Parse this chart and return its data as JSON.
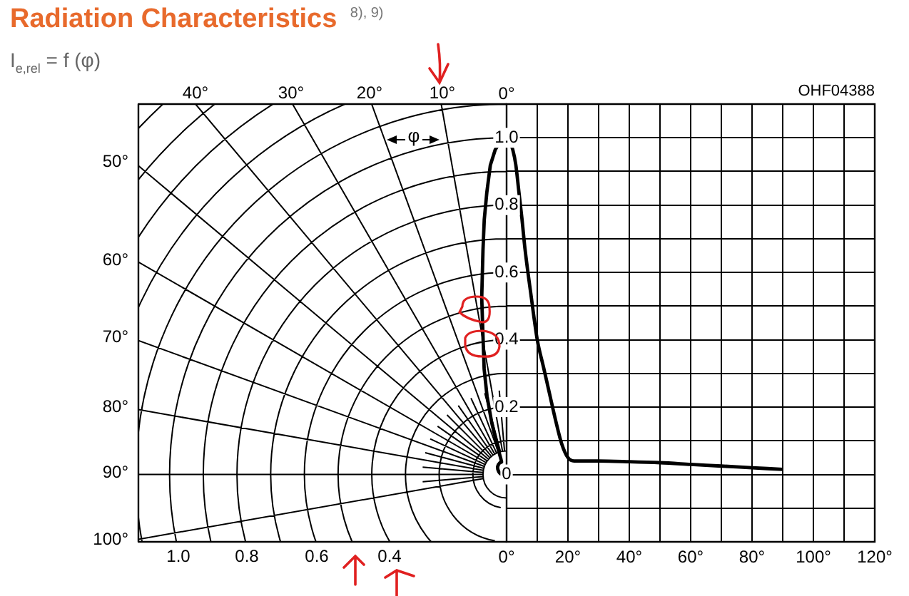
{
  "chart_data": {
    "type": "line",
    "title": "Radiation Characteristics $^{8), 9)}$",
    "subtitle": "I$_{e,rel}$ = f (φ)",
    "ylabel": "0°",
    "annotations": [
      "OHF04388",
      "φ",
      "40°",
      "30°",
      "20°",
      "10°",
      "50°",
      "60°",
      "70°",
      "80°",
      "90°",
      "100°",
      "1.0",
      "0.8",
      "0.6",
      "0.4"
    ],
    "x": [
      0,
      1,
      2,
      3,
      4,
      5,
      6,
      8,
      10,
      12,
      14,
      16,
      18,
      20,
      22,
      30,
      40,
      50,
      60,
      70,
      80,
      90
    ],
    "values": [
      1.0,
      0.99,
      0.965,
      0.92,
      0.84,
      0.76,
      0.67,
      0.53,
      0.4,
      0.32,
      0.24,
      0.16,
      0.09,
      0.05,
      0.04,
      0.04,
      0.038,
      0.035,
      0.03,
      0.025,
      0.02,
      0.015
    ],
    "color": "#000000",
    "xlim": [
      0,
      120
    ],
    "xticks": [
      {
        "value": 0,
        "label": "0°"
      },
      {
        "value": 10,
        "label": null
      },
      {
        "value": 20,
        "label": "20°"
      },
      {
        "value": 30,
        "label": null
      },
      {
        "value": 40,
        "label": "40°"
      },
      {
        "value": 50,
        "label": null
      },
      {
        "value": 60,
        "label": "60°"
      },
      {
        "value": 70,
        "label": null
      },
      {
        "value": 80,
        "label": "80°"
      },
      {
        "value": 90,
        "label": null
      },
      {
        "value": 100,
        "label": "100°"
      },
      {
        "value": 110,
        "label": null
      },
      {
        "value": 120,
        "label": "120°"
      }
    ],
    "ylim": [
      -0.2,
      1.1
    ],
    "yticks": [
      {
        "value": -0.2,
        "label": null
      },
      {
        "value": -0.1,
        "label": null
      },
      0,
      {
        "value": 0.1,
        "label": null
      },
      0.2,
      {
        "value": 0.3,
        "label": null
      },
      0.4,
      {
        "value": 0.5,
        "label": null
      },
      0.6,
      {
        "value": 0.7,
        "label": null
      },
      0.8,
      {
        "value": 0.9,
        "label": null
      },
      {
        "value": 1,
        "label": "1.0"
      },
      {
        "value": 1.1,
        "label": null
      }
    ],
    "grid": true,
    "legend": false,
    "marker": "none",
    "line_style": "solid"
  }
}
